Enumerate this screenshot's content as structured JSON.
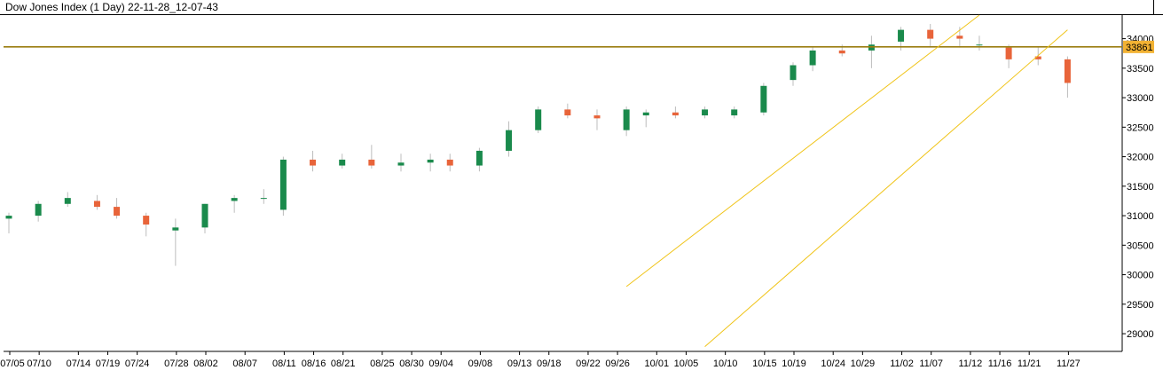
{
  "window": {
    "title": "Dow Jones Index (1 Day) 22-11-28_12-07-43"
  },
  "colors": {
    "up": "#1a8a4c",
    "down": "#e8643a",
    "wick": "#bcbcbc",
    "hline": "#9a7d10",
    "channel": "#f0c419",
    "tag_bg": "#f2b233"
  },
  "chart_data": {
    "type": "candlestick",
    "title": "Dow Jones Index (1 Day) 22-11-28_12-07-43",
    "ylim": [
      28700,
      34400
    ],
    "yticks": [
      29000,
      29500,
      30000,
      30500,
      31000,
      31500,
      32000,
      32500,
      33000,
      33500,
      34000
    ],
    "xtick_labels": [
      {
        "label": "07/05",
        "index": 0
      },
      {
        "label": "07/10",
        "index": 3
      },
      {
        "label": "07/14",
        "index": 7
      },
      {
        "label": "07/19",
        "index": 10
      },
      {
        "label": "07/24",
        "index": 13
      },
      {
        "label": "07/28",
        "index": 17
      },
      {
        "label": "08/02",
        "index": 20
      },
      {
        "label": "08/07",
        "index": 24
      },
      {
        "label": "08/11",
        "index": 28
      },
      {
        "label": "08/16",
        "index": 31
      },
      {
        "label": "08/21",
        "index": 34
      },
      {
        "label": "08/25",
        "index": 38
      },
      {
        "label": "08/30",
        "index": 41
      },
      {
        "label": "09/04",
        "index": 44
      },
      {
        "label": "09/08",
        "index": 48
      },
      {
        "label": "09/13",
        "index": 52
      },
      {
        "label": "09/18",
        "index": 55
      },
      {
        "label": "09/22",
        "index": 59
      },
      {
        "label": "09/26",
        "index": 62
      },
      {
        "label": "10/01",
        "index": 66
      },
      {
        "label": "10/05",
        "index": 69
      },
      {
        "label": "10/10",
        "index": 73
      },
      {
        "label": "10/15",
        "index": 77
      },
      {
        "label": "10/19",
        "index": 80
      },
      {
        "label": "10/24",
        "index": 84
      },
      {
        "label": "10/29",
        "index": 87
      },
      {
        "label": "11/02",
        "index": 91
      },
      {
        "label": "11/07",
        "index": 94
      },
      {
        "label": "11/12",
        "index": 98
      },
      {
        "label": "11/16",
        "index": 101
      },
      {
        "label": "11/21",
        "index": 104
      },
      {
        "label": "11/27",
        "index": 108
      }
    ],
    "horizontal_line": {
      "value": 33861,
      "label": "33861"
    },
    "channel": {
      "upper": [
        [
          63,
          29800
        ],
        [
          99,
          34400
        ]
      ],
      "lower": [
        [
          71,
          28780
        ],
        [
          108,
          34150
        ]
      ]
    },
    "candles": [
      [
        30950,
        31050,
        30700,
        31000
      ],
      [
        31000,
        31250,
        30900,
        31200
      ],
      [
        31200,
        31400,
        31150,
        31300
      ],
      [
        31250,
        31350,
        31100,
        31150
      ],
      [
        31150,
        31300,
        30950,
        31000
      ],
      [
        31000,
        31050,
        30650,
        30850
      ],
      [
        30750,
        30950,
        30150,
        30800
      ],
      [
        30800,
        31200,
        30700,
        31200
      ],
      [
        31250,
        31350,
        31050,
        31300
      ],
      [
        31300,
        31450,
        31200,
        31300
      ],
      [
        31100,
        32000,
        31000,
        31950
      ],
      [
        31950,
        32100,
        31750,
        31850
      ],
      [
        31850,
        32050,
        31800,
        31950
      ],
      [
        31950,
        32200,
        31800,
        31850
      ],
      [
        31850,
        32050,
        31750,
        31900
      ],
      [
        31900,
        32050,
        31750,
        31950
      ],
      [
        31950,
        32050,
        31750,
        31850
      ],
      [
        31850,
        32150,
        31750,
        32100
      ],
      [
        32100,
        32600,
        32000,
        32450
      ],
      [
        32450,
        32850,
        32400,
        32800
      ],
      [
        32800,
        32900,
        32650,
        32700
      ],
      [
        32700,
        32800,
        32450,
        32650
      ],
      [
        32450,
        32850,
        32350,
        32800
      ],
      [
        32700,
        32800,
        32500,
        32750
      ],
      [
        32750,
        32850,
        32650,
        32700
      ],
      [
        32700,
        32850,
        32650,
        32800
      ],
      [
        32700,
        32850,
        32650,
        32800
      ],
      [
        32750,
        33250,
        32700,
        33200
      ],
      [
        33300,
        33600,
        33200,
        33550
      ],
      [
        33550,
        33850,
        33450,
        33800
      ],
      [
        33800,
        33900,
        33700,
        33750
      ],
      [
        33800,
        34050,
        33500,
        33900
      ],
      [
        33950,
        34200,
        33800,
        34150
      ],
      [
        34150,
        34250,
        33850,
        34000
      ],
      [
        34050,
        34200,
        33850,
        34000
      ],
      [
        33900,
        34050,
        33800,
        33900
      ],
      [
        33850,
        33900,
        33500,
        33650
      ],
      [
        33700,
        33850,
        33550,
        33650
      ],
      [
        33650,
        33700,
        33000,
        33250
      ]
    ]
  }
}
